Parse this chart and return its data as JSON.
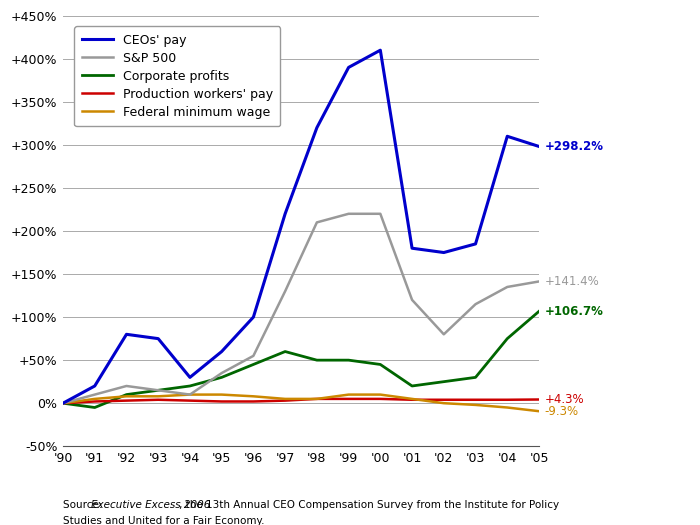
{
  "years": [
    1990,
    1991,
    1992,
    1993,
    1994,
    1995,
    1996,
    1997,
    1998,
    1999,
    2000,
    2001,
    2002,
    2003,
    2004,
    2005
  ],
  "ceo_pay": [
    0,
    20,
    80,
    75,
    30,
    60,
    100,
    220,
    320,
    390,
    410,
    180,
    175,
    185,
    310,
    298.2
  ],
  "sp500": [
    0,
    10,
    20,
    15,
    10,
    35,
    55,
    130,
    210,
    220,
    220,
    120,
    80,
    115,
    135,
    141.4
  ],
  "corp_profits": [
    0,
    -5,
    10,
    15,
    20,
    30,
    45,
    60,
    50,
    50,
    45,
    20,
    25,
    30,
    75,
    106.7
  ],
  "prod_workers": [
    0,
    2,
    3,
    4,
    3,
    2,
    2,
    3,
    5,
    5,
    5,
    4,
    4,
    4,
    4,
    4.3
  ],
  "fed_min_wage": [
    0,
    5,
    8,
    8,
    10,
    10,
    8,
    5,
    5,
    10,
    10,
    5,
    0,
    -2,
    -5,
    -9.3
  ],
  "ceo_color": "#0000cc",
  "sp500_color": "#999999",
  "corp_color": "#006600",
  "prod_color": "#cc0000",
  "fed_color": "#cc8800",
  "bg_color": "#ffffff",
  "grid_color": "#aaaaaa",
  "ylim": [
    -50,
    450
  ],
  "yticks": [
    -50,
    0,
    50,
    100,
    150,
    200,
    250,
    300,
    350,
    400,
    450
  ],
  "ytick_labels": [
    "-50%",
    "0%",
    "+50%",
    "+100%",
    "+150%",
    "+200%",
    "+250%",
    "+300%",
    "+350%",
    "+400%",
    "+450%"
  ],
  "end_labels": {
    "ceo": "+298.2%",
    "sp500": "+141.4%",
    "corp": "+106.7%",
    "prod": "+4.3%",
    "fed": "-9.3%"
  },
  "legend_entries": [
    "CEOs' pay",
    "S&P 500",
    "Corporate profits",
    "Production workers' pay",
    "Federal minimum wage"
  ]
}
